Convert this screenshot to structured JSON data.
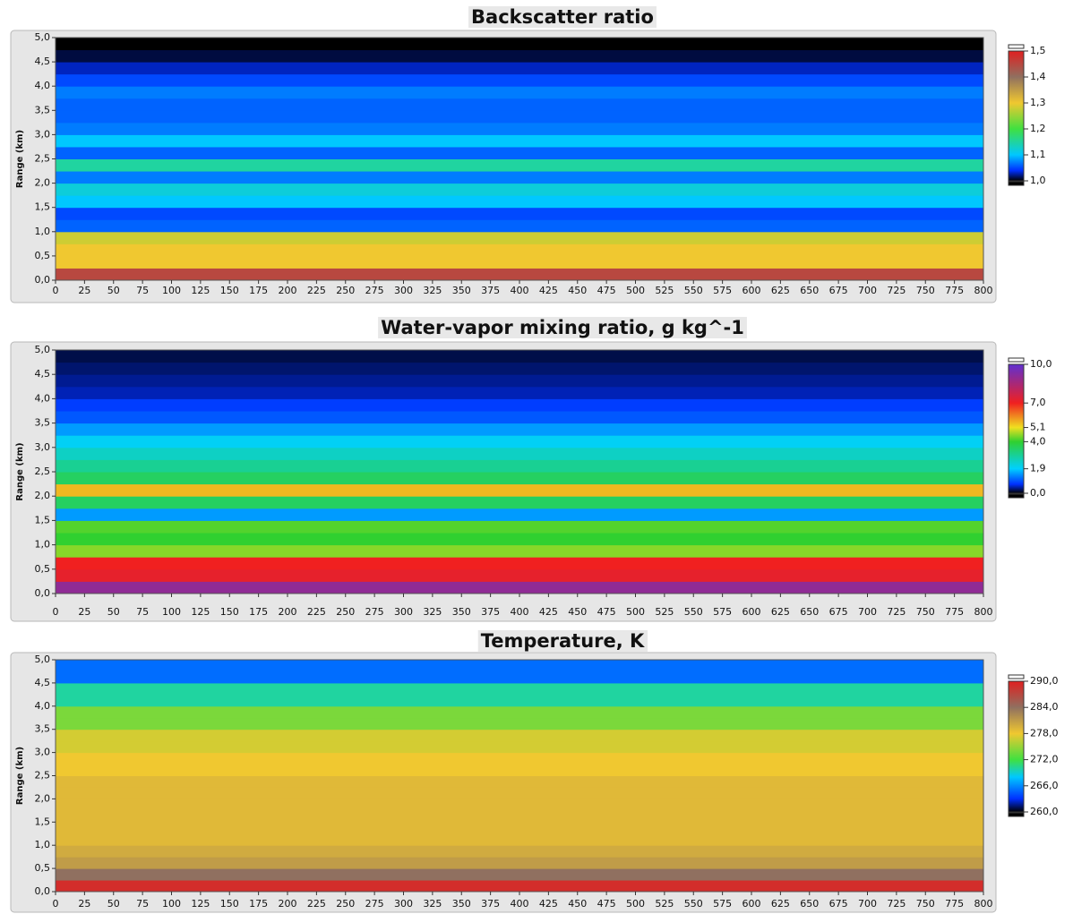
{
  "chart_data": [
    {
      "type": "heatmap",
      "title": "Backscatter ratio",
      "ylabel": "Range (km)",
      "xlim": [
        0,
        800
      ],
      "xticks": [
        0,
        25,
        50,
        75,
        100,
        125,
        150,
        175,
        200,
        225,
        250,
        275,
        300,
        325,
        350,
        375,
        400,
        425,
        450,
        475,
        500,
        525,
        550,
        575,
        600,
        625,
        650,
        675,
        700,
        725,
        750,
        775,
        800
      ],
      "ylim": [
        0,
        5
      ],
      "yticks": [
        {
          "value": 0,
          "label": "0,0"
        },
        {
          "value": 0.5,
          "label": "0,5"
        },
        {
          "value": 1,
          "label": "1,0"
        },
        {
          "value": 1.5,
          "label": "1,5"
        },
        {
          "value": 2,
          "label": "2,0"
        },
        {
          "value": 2.5,
          "label": "2,5"
        },
        {
          "value": 3,
          "label": "3,0"
        },
        {
          "value": 3.5,
          "label": "3,5"
        },
        {
          "value": 4,
          "label": "4,0"
        },
        {
          "value": 4.5,
          "label": "4,5"
        },
        {
          "value": 5,
          "label": "5,0"
        }
      ],
      "y_bins": [
        0,
        0.25,
        0.5,
        0.75,
        1,
        1.25,
        1.5,
        1.75,
        2,
        2.25,
        2.5,
        2.75,
        3,
        3.25,
        3.5,
        3.75,
        4,
        4.25,
        4.5,
        4.75,
        5
      ],
      "values": [
        1.45,
        1.3,
        1.3,
        1.28,
        1.06,
        1.05,
        1.1,
        1.12,
        1.07,
        1.15,
        1.06,
        1.1,
        1.07,
        1.06,
        1.06,
        1.07,
        1.05,
        1.03,
        1.01,
        1.0
      ],
      "colorbar": {
        "lim": [
          1.0,
          1.5
        ],
        "ticks": [
          {
            "value": 1.5,
            "label": "1,5"
          },
          {
            "value": 1.4,
            "label": "1,4"
          },
          {
            "value": 1.3,
            "label": "1,3"
          },
          {
            "value": 1.2,
            "label": "1,2"
          },
          {
            "value": 1.1,
            "label": "1,1"
          },
          {
            "value": 1.0,
            "label": "1,0"
          }
        ],
        "stops": [
          1.0,
          1.04,
          1.1,
          1.2,
          1.3,
          1.4,
          1.5
        ],
        "colors": [
          "#000000",
          "#0030ff",
          "#00c8ff",
          "#40e040",
          "#f0c830",
          "#907060",
          "#e02020"
        ]
      }
    },
    {
      "type": "heatmap",
      "title": "Water-vapor mixing ratio, g kg^-1",
      "ylabel": "Range (km)",
      "xlim": [
        0,
        800
      ],
      "xticks": [
        0,
        25,
        50,
        75,
        100,
        125,
        150,
        175,
        200,
        225,
        250,
        275,
        300,
        325,
        350,
        375,
        400,
        425,
        450,
        475,
        500,
        525,
        550,
        575,
        600,
        625,
        650,
        675,
        700,
        725,
        750,
        775,
        800
      ],
      "ylim": [
        0,
        5
      ],
      "yticks": [
        {
          "value": 0,
          "label": "0,0"
        },
        {
          "value": 0.5,
          "label": "0,5"
        },
        {
          "value": 1,
          "label": "1,0"
        },
        {
          "value": 1.5,
          "label": "1,5"
        },
        {
          "value": 2,
          "label": "2,0"
        },
        {
          "value": 2.5,
          "label": "2,5"
        },
        {
          "value": 3,
          "label": "3,0"
        },
        {
          "value": 3.5,
          "label": "3,5"
        },
        {
          "value": 4,
          "label": "4,0"
        },
        {
          "value": 4.5,
          "label": "4,5"
        },
        {
          "value": 5,
          "label": "5,0"
        }
      ],
      "y_bins": [
        0,
        0.25,
        0.5,
        0.75,
        1,
        1.25,
        1.5,
        1.75,
        2,
        2.25,
        2.5,
        2.75,
        3,
        3.25,
        3.5,
        3.75,
        4,
        4.25,
        4.5,
        4.75,
        5
      ],
      "values": [
        9,
        7.2,
        7,
        4.5,
        4,
        4.2,
        1.5,
        3.5,
        5.5,
        3.5,
        3,
        2.5,
        2,
        1.5,
        1,
        0.8,
        0.5,
        0.4,
        0.3,
        0.2
      ],
      "colorbar": {
        "lim": [
          0,
          10
        ],
        "ticks": [
          {
            "value": 10,
            "label": "10,0"
          },
          {
            "value": 7,
            "label": "7,0"
          },
          {
            "value": 5.1,
            "label": "5,1"
          },
          {
            "value": 4,
            "label": "4,0"
          },
          {
            "value": 1.9,
            "label": "1,9"
          },
          {
            "value": 0,
            "label": "0,0"
          }
        ],
        "stops": [
          0,
          0.7,
          1.9,
          4,
          5.1,
          7,
          10
        ],
        "colors": [
          "#000000",
          "#0030ff",
          "#00d0ff",
          "#30d030",
          "#f0e020",
          "#f02020",
          "#6030d0"
        ]
      }
    },
    {
      "type": "heatmap",
      "title": "Temperature, K",
      "ylabel": "Range (km)",
      "xlim": [
        0,
        800
      ],
      "xticks": [
        0,
        25,
        50,
        75,
        100,
        125,
        150,
        175,
        200,
        225,
        250,
        275,
        300,
        325,
        350,
        375,
        400,
        425,
        450,
        475,
        500,
        525,
        550,
        575,
        600,
        625,
        650,
        675,
        700,
        725,
        750,
        775,
        800
      ],
      "ylim": [
        0,
        5
      ],
      "yticks": [
        {
          "value": 0,
          "label": "0,0"
        },
        {
          "value": 0.5,
          "label": "0,5"
        },
        {
          "value": 1,
          "label": "1,0"
        },
        {
          "value": 1.5,
          "label": "1,5"
        },
        {
          "value": 2,
          "label": "2,0"
        },
        {
          "value": 2.5,
          "label": "2,5"
        },
        {
          "value": 3,
          "label": "3,0"
        },
        {
          "value": 3.5,
          "label": "3,5"
        },
        {
          "value": 4,
          "label": "4,0"
        },
        {
          "value": 4.5,
          "label": "4,5"
        },
        {
          "value": 5,
          "label": "5,0"
        }
      ],
      "y_bins": [
        0,
        0.25,
        0.5,
        0.75,
        1,
        1.25,
        1.5,
        1.75,
        2,
        2.25,
        2.5,
        2.75,
        3,
        3.25,
        3.5,
        3.75,
        4,
        4.25,
        4.5,
        4.75,
        5
      ],
      "values": [
        289,
        284,
        281,
        280,
        279,
        279,
        279,
        279,
        279,
        279,
        278,
        278,
        277,
        277,
        274,
        274,
        270,
        270,
        265,
        265
      ],
      "colorbar": {
        "lim": [
          260,
          290
        ],
        "ticks": [
          {
            "value": 290,
            "label": "290,0"
          },
          {
            "value": 284,
            "label": "284,0"
          },
          {
            "value": 278,
            "label": "278,0"
          },
          {
            "value": 272,
            "label": "272,0"
          },
          {
            "value": 266,
            "label": "266,0"
          },
          {
            "value": 260,
            "label": "260,0"
          }
        ],
        "stops": [
          260,
          263,
          268,
          272,
          278,
          284,
          290
        ],
        "colors": [
          "#000000",
          "#0030ff",
          "#00c8ff",
          "#40e040",
          "#f0c830",
          "#907060",
          "#e02020"
        ]
      }
    }
  ]
}
